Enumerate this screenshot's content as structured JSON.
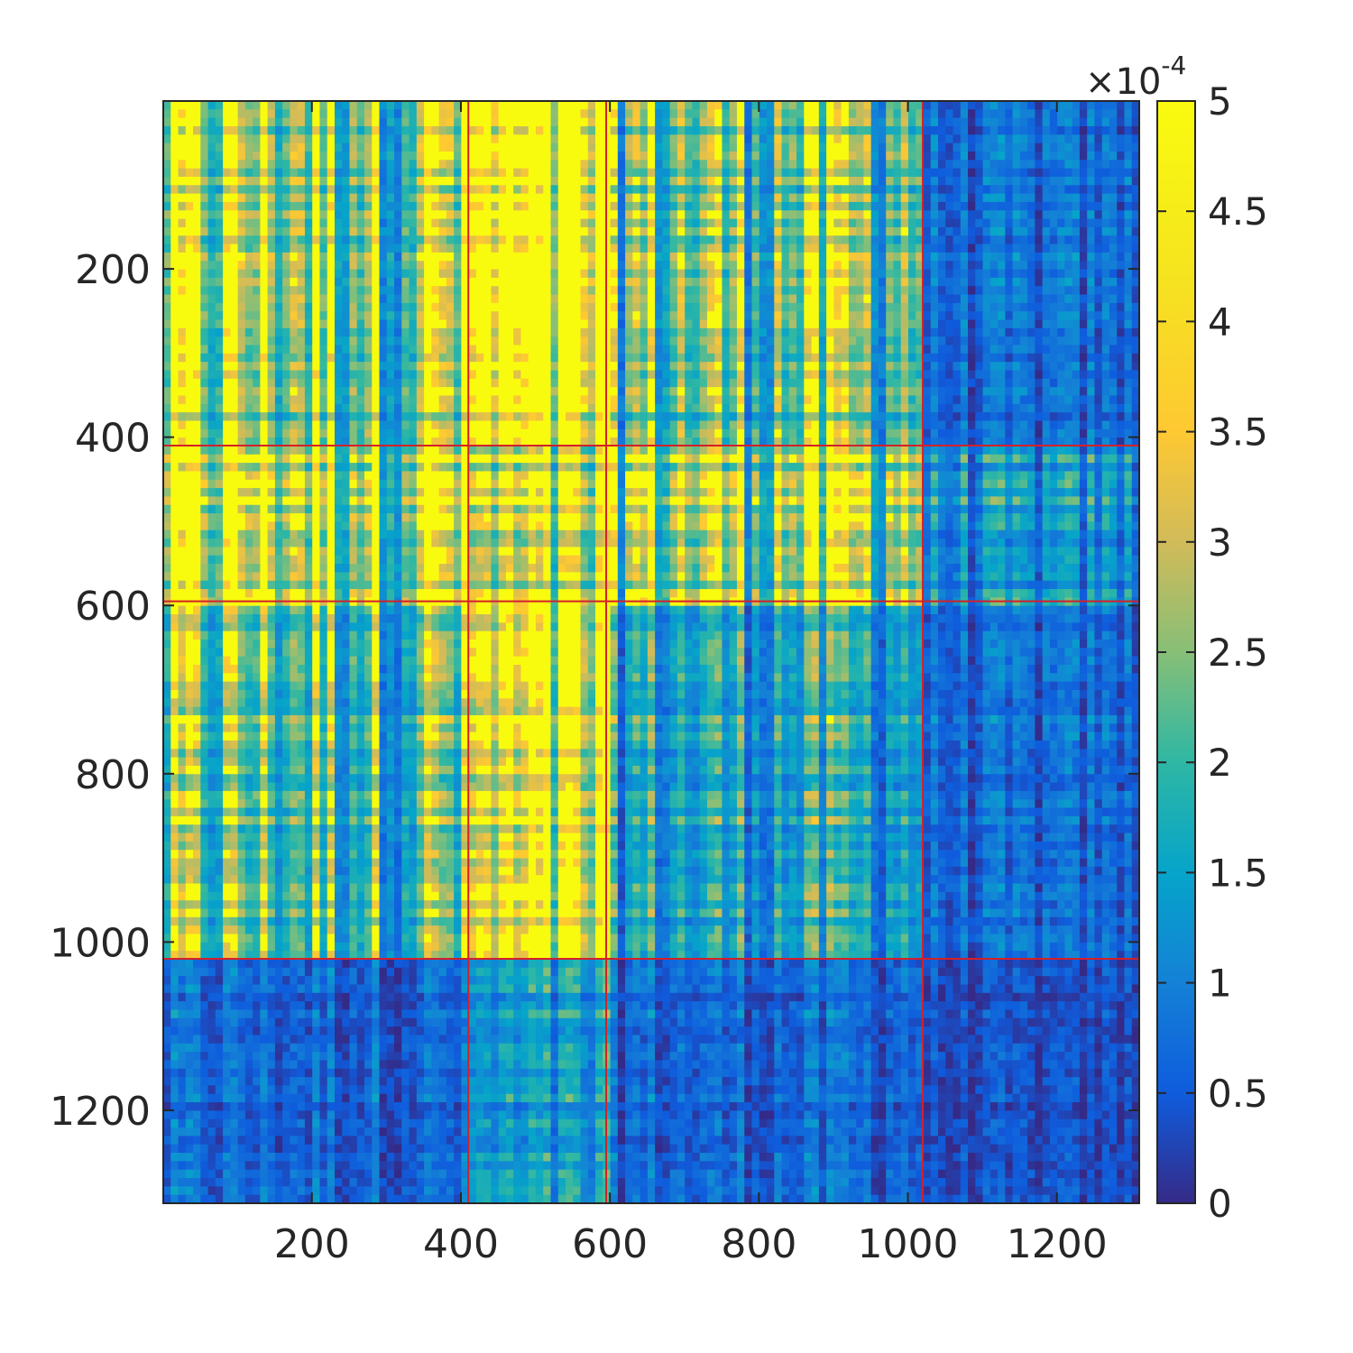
{
  "chart_data": {
    "type": "heatmap",
    "title": "",
    "xlabel": "",
    "ylabel": "",
    "matrix_size": 1310,
    "xlim": [
      1,
      1310
    ],
    "ylim": [
      1,
      1310
    ],
    "y_direction": "reverse",
    "x_ticks": [
      200,
      400,
      600,
      800,
      1000,
      1200
    ],
    "x_tick_labels": [
      "200",
      "400",
      "600",
      "800",
      "1000",
      "1200"
    ],
    "y_ticks": [
      200,
      400,
      600,
      800,
      1000,
      1200
    ],
    "y_tick_labels": [
      "200",
      "400",
      "600",
      "800",
      "1000",
      "1200"
    ],
    "colormap": "parula",
    "color_limits": [
      0,
      5
    ],
    "colorbar": {
      "location": "right",
      "ticks": [
        0,
        0.5,
        1,
        1.5,
        2,
        2.5,
        3,
        3.5,
        4,
        4.5,
        5
      ],
      "tick_labels": [
        "0",
        "0.5",
        "1",
        "1.5",
        "2",
        "2.5",
        "3",
        "3.5",
        "4",
        "4.5",
        "5"
      ],
      "exponent_prefix": "×10",
      "exponent": "-4"
    },
    "block_boundaries": [
      410,
      595,
      1020
    ],
    "blocks": [
      "1-410",
      "411-595",
      "596-1020",
      "1021-1310"
    ],
    "block_mean_level": [
      [
        0.55,
        0.7,
        0.45,
        0.12
      ],
      [
        0.7,
        0.55,
        0.6,
        0.22
      ],
      [
        0.45,
        0.6,
        0.3,
        0.12
      ],
      [
        0.12,
        0.22,
        0.12,
        0.06
      ]
    ],
    "boundary_line_color": "#d4202a",
    "grid": false
  }
}
